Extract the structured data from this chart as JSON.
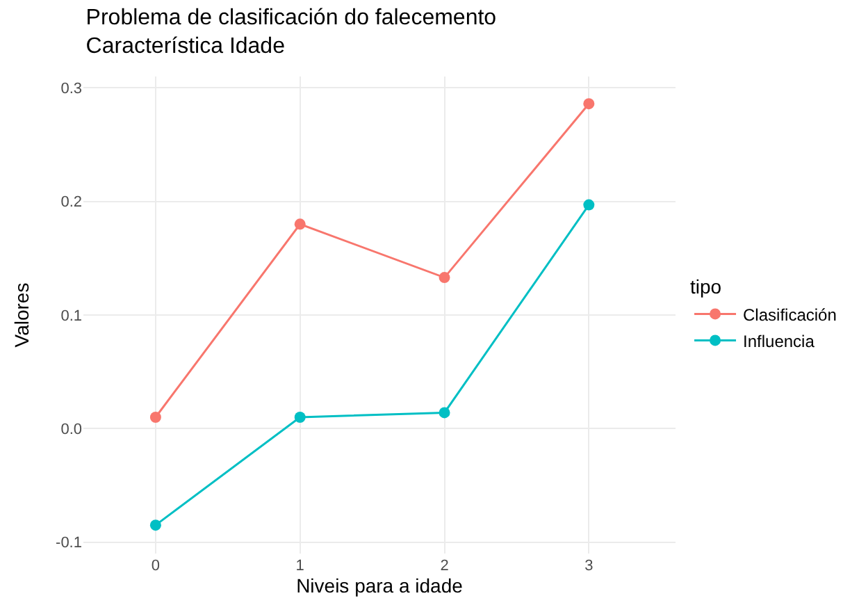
{
  "chart_data": {
    "type": "line",
    "title": "Problema de clasificación do falecemento\nCaracterística Idade",
    "xlabel": "Niveis para a idade",
    "ylabel": "Valores",
    "legend_title": "tipo",
    "x": [
      0,
      1,
      2,
      3
    ],
    "series": [
      {
        "name": "Clasificación",
        "color": "#f8766d",
        "values": [
          0.01,
          0.18,
          0.133,
          0.286
        ]
      },
      {
        "name": "Influencia",
        "color": "#00bfc4",
        "values": [
          -0.085,
          0.01,
          0.014,
          0.197
        ]
      }
    ],
    "xlim": [
      -0.5,
      3.6
    ],
    "xticks": [
      0,
      1,
      2,
      3
    ],
    "ylim": [
      -0.11,
      0.31
    ],
    "yticks": [
      {
        "value": -0.1,
        "label": "-0.1"
      },
      {
        "value": 0,
        "label": "0.0"
      },
      {
        "value": 0.1,
        "label": "0.1"
      },
      {
        "value": 0.2,
        "label": "0.2"
      },
      {
        "value": 0.3,
        "label": "0.3"
      }
    ],
    "grid": true,
    "legend": "right",
    "marker": "circle",
    "line_style": "solid"
  }
}
